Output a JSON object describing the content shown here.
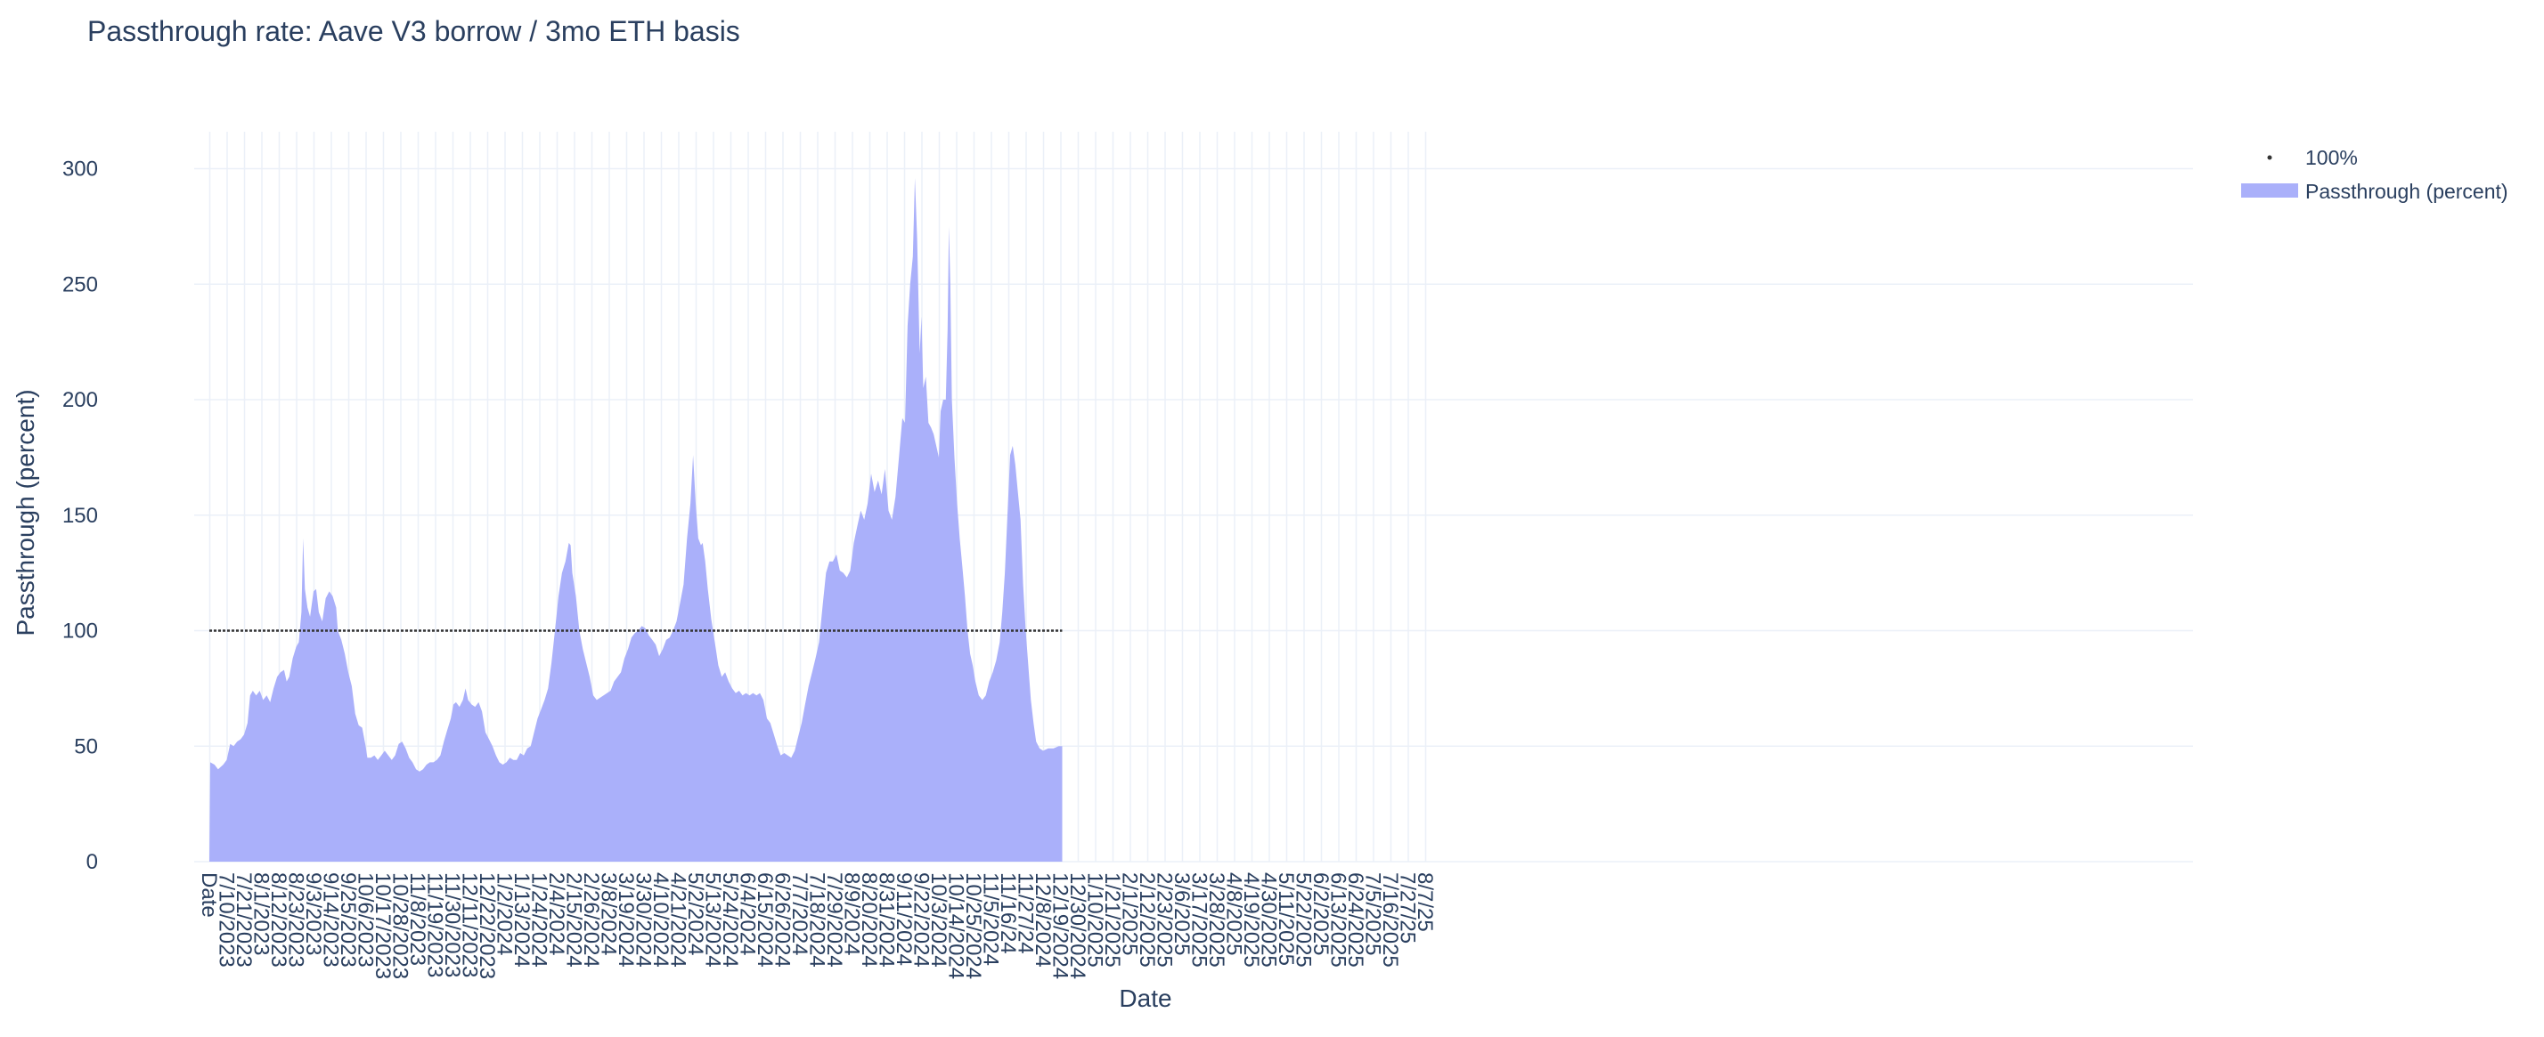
{
  "chart_data": {
    "type": "area",
    "title": "Passthrough rate: Aave V3 borrow / 3mo ETH basis",
    "xlabel": "Date",
    "ylabel": "Passthrough (percent)",
    "ylim": [
      0,
      316
    ],
    "yticks": [
      0,
      50,
      100,
      150,
      200,
      250,
      300
    ],
    "grid": true,
    "legend_position": "top-right",
    "colors": {
      "area": "#aab0fa",
      "grid": "#ebf0f8",
      "ref_line": "#333333",
      "text": "#2a3f5f"
    },
    "x_categories": [
      "Date",
      "7/10/2023",
      "7/21/2023",
      "8/1/2023",
      "8/12/2023",
      "8/23/2023",
      "9/3/2023",
      "9/14/2023",
      "9/25/2023",
      "10/6/2023",
      "10/17/2023",
      "10/28/2023",
      "11/8/2023",
      "11/19/2023",
      "11/30/2023",
      "12/11/2023",
      "12/22/2023",
      "1/2/2024",
      "1/13/2024",
      "1/24/2024",
      "2/4/2024",
      "2/15/2024",
      "2/26/2024",
      "3/8/2024",
      "3/19/2024",
      "3/30/2024",
      "4/10/2024",
      "4/21/2024",
      "5/2/2024",
      "5/13/2024",
      "5/24/2024",
      "6/4/2024",
      "6/15/2024",
      "6/26/2024",
      "7/7/2024",
      "7/18/2024",
      "7/29/2024",
      "8/9/2024",
      "8/20/2024",
      "8/31/2024",
      "9/11/2024",
      "9/22/2024",
      "10/3/2024",
      "10/14/2024",
      "10/25/2024",
      "11/5/2024",
      "11/16/24",
      "11/27/24",
      "12/8/2024",
      "12/19/2024",
      "12/30/2024",
      "1/10/2025",
      "1/21/2025",
      "2/1/2025",
      "2/12/2025",
      "2/23/2025",
      "3/6/2025",
      "3/17/2025",
      "3/28/2025",
      "4/8/2025",
      "4/19/2025",
      "4/30/2025",
      "5/11/2025",
      "5/22/2025",
      "6/2/2025",
      "6/13/2025",
      "6/24/2025",
      "7/5/2025",
      "7/16/2025",
      "7/27/25",
      "8/7/25"
    ],
    "series": [
      {
        "name": "Passthrough (percent)",
        "type": "area",
        "points": [
          [
            0,
            0
          ],
          [
            0.05,
            43
          ],
          [
            0.3,
            42
          ],
          [
            0.5,
            40
          ],
          [
            0.8,
            42
          ],
          [
            1.0,
            44
          ],
          [
            1.2,
            51
          ],
          [
            1.4,
            50
          ],
          [
            1.6,
            52
          ],
          [
            1.8,
            53
          ],
          [
            2.0,
            55
          ],
          [
            2.2,
            60
          ],
          [
            2.35,
            72
          ],
          [
            2.5,
            74
          ],
          [
            2.7,
            72
          ],
          [
            2.9,
            74
          ],
          [
            3.1,
            70
          ],
          [
            3.3,
            72
          ],
          [
            3.5,
            69
          ],
          [
            3.7,
            75
          ],
          [
            3.9,
            80
          ],
          [
            4.1,
            82
          ],
          [
            4.3,
            83
          ],
          [
            4.45,
            78
          ],
          [
            4.6,
            80
          ],
          [
            4.8,
            88
          ],
          [
            5.0,
            93
          ],
          [
            5.15,
            95
          ],
          [
            5.3,
            108
          ],
          [
            5.4,
            140
          ],
          [
            5.5,
            118
          ],
          [
            5.65,
            110
          ],
          [
            5.8,
            106
          ],
          [
            6.0,
            117
          ],
          [
            6.15,
            118
          ],
          [
            6.3,
            108
          ],
          [
            6.5,
            104
          ],
          [
            6.7,
            114
          ],
          [
            6.9,
            117
          ],
          [
            7.1,
            115
          ],
          [
            7.3,
            110
          ],
          [
            7.4,
            100
          ],
          [
            7.6,
            96
          ],
          [
            7.8,
            90
          ],
          [
            8.0,
            82
          ],
          [
            8.2,
            76
          ],
          [
            8.4,
            64
          ],
          [
            8.6,
            59
          ],
          [
            8.8,
            58
          ],
          [
            9.0,
            50
          ],
          [
            9.1,
            45
          ],
          [
            9.3,
            45
          ],
          [
            9.5,
            46
          ],
          [
            9.7,
            44
          ],
          [
            9.9,
            46
          ],
          [
            10.1,
            48
          ],
          [
            10.3,
            46
          ],
          [
            10.5,
            44
          ],
          [
            10.7,
            46
          ],
          [
            10.9,
            51
          ],
          [
            11.1,
            52
          ],
          [
            11.3,
            49
          ],
          [
            11.5,
            45
          ],
          [
            11.7,
            43
          ],
          [
            11.9,
            40
          ],
          [
            12.1,
            39
          ],
          [
            12.3,
            40
          ],
          [
            12.5,
            42
          ],
          [
            12.7,
            43
          ],
          [
            12.9,
            43
          ],
          [
            13.1,
            44
          ],
          [
            13.3,
            46
          ],
          [
            13.5,
            52
          ],
          [
            13.7,
            57
          ],
          [
            13.9,
            62
          ],
          [
            14.05,
            68
          ],
          [
            14.2,
            69
          ],
          [
            14.4,
            67
          ],
          [
            14.6,
            70
          ],
          [
            14.75,
            75
          ],
          [
            14.9,
            70
          ],
          [
            15.1,
            68
          ],
          [
            15.3,
            67
          ],
          [
            15.5,
            69
          ],
          [
            15.7,
            65
          ],
          [
            15.9,
            56
          ],
          [
            16.1,
            53
          ],
          [
            16.3,
            50
          ],
          [
            16.5,
            46
          ],
          [
            16.7,
            43
          ],
          [
            16.9,
            42
          ],
          [
            17.1,
            43
          ],
          [
            17.3,
            45
          ],
          [
            17.5,
            44
          ],
          [
            17.7,
            44
          ],
          [
            17.9,
            47
          ],
          [
            18.1,
            46
          ],
          [
            18.3,
            49
          ],
          [
            18.5,
            50
          ],
          [
            18.7,
            56
          ],
          [
            18.9,
            62
          ],
          [
            19.1,
            66
          ],
          [
            19.3,
            70
          ],
          [
            19.5,
            75
          ],
          [
            19.7,
            86
          ],
          [
            19.9,
            100
          ],
          [
            20.1,
            115
          ],
          [
            20.3,
            125
          ],
          [
            20.5,
            130
          ],
          [
            20.7,
            138
          ],
          [
            20.8,
            137
          ],
          [
            20.9,
            125
          ],
          [
            21.1,
            115
          ],
          [
            21.3,
            100
          ],
          [
            21.5,
            92
          ],
          [
            21.7,
            86
          ],
          [
            21.9,
            80
          ],
          [
            22.1,
            72
          ],
          [
            22.3,
            70
          ],
          [
            22.5,
            71
          ],
          [
            22.7,
            72
          ],
          [
            22.9,
            73
          ],
          [
            23.1,
            74
          ],
          [
            23.3,
            78
          ],
          [
            23.5,
            80
          ],
          [
            23.7,
            82
          ],
          [
            23.9,
            88
          ],
          [
            24.1,
            92
          ],
          [
            24.3,
            97
          ],
          [
            24.5,
            99
          ],
          [
            24.7,
            100
          ],
          [
            24.9,
            102
          ],
          [
            25.1,
            101
          ],
          [
            25.3,
            98
          ],
          [
            25.5,
            96
          ],
          [
            25.7,
            94
          ],
          [
            25.9,
            89
          ],
          [
            26.1,
            92
          ],
          [
            26.3,
            96
          ],
          [
            26.5,
            97
          ],
          [
            26.7,
            100
          ],
          [
            26.9,
            104
          ],
          [
            27.1,
            112
          ],
          [
            27.3,
            120
          ],
          [
            27.5,
            140
          ],
          [
            27.7,
            155
          ],
          [
            27.85,
            176
          ],
          [
            28.0,
            155
          ],
          [
            28.15,
            140
          ],
          [
            28.3,
            137
          ],
          [
            28.4,
            138
          ],
          [
            28.55,
            130
          ],
          [
            28.7,
            118
          ],
          [
            28.9,
            105
          ],
          [
            29.1,
            95
          ],
          [
            29.3,
            85
          ],
          [
            29.5,
            80
          ],
          [
            29.7,
            82
          ],
          [
            29.9,
            78
          ],
          [
            30.1,
            75
          ],
          [
            30.3,
            73
          ],
          [
            30.5,
            74
          ],
          [
            30.7,
            72
          ],
          [
            30.9,
            73
          ],
          [
            31.1,
            72
          ],
          [
            31.3,
            73
          ],
          [
            31.5,
            72
          ],
          [
            31.7,
            73
          ],
          [
            31.9,
            70
          ],
          [
            32.1,
            62
          ],
          [
            32.3,
            60
          ],
          [
            32.5,
            55
          ],
          [
            32.7,
            50
          ],
          [
            32.9,
            46
          ],
          [
            33.1,
            47
          ],
          [
            33.3,
            46
          ],
          [
            33.5,
            45
          ],
          [
            33.7,
            48
          ],
          [
            33.9,
            54
          ],
          [
            34.1,
            60
          ],
          [
            34.3,
            68
          ],
          [
            34.5,
            76
          ],
          [
            34.7,
            82
          ],
          [
            34.9,
            88
          ],
          [
            35.1,
            95
          ],
          [
            35.3,
            110
          ],
          [
            35.5,
            125
          ],
          [
            35.7,
            130
          ],
          [
            35.9,
            130
          ],
          [
            36.1,
            133
          ],
          [
            36.3,
            126
          ],
          [
            36.5,
            125
          ],
          [
            36.7,
            123
          ],
          [
            36.9,
            126
          ],
          [
            37.1,
            138
          ],
          [
            37.3,
            145
          ],
          [
            37.5,
            152
          ],
          [
            37.7,
            148
          ],
          [
            37.9,
            155
          ],
          [
            38.1,
            168
          ],
          [
            38.3,
            160
          ],
          [
            38.5,
            165
          ],
          [
            38.7,
            159
          ],
          [
            38.9,
            170
          ],
          [
            39.1,
            152
          ],
          [
            39.3,
            148
          ],
          [
            39.5,
            158
          ],
          [
            39.7,
            175
          ],
          [
            39.9,
            192
          ],
          [
            40.05,
            190
          ],
          [
            40.2,
            232
          ],
          [
            40.35,
            250
          ],
          [
            40.5,
            262
          ],
          [
            40.62,
            296
          ],
          [
            40.75,
            270
          ],
          [
            40.9,
            220
          ],
          [
            41.0,
            236
          ],
          [
            41.1,
            205
          ],
          [
            41.25,
            210
          ],
          [
            41.4,
            190
          ],
          [
            41.55,
            188
          ],
          [
            41.7,
            185
          ],
          [
            41.85,
            180
          ],
          [
            42.0,
            175
          ],
          [
            42.1,
            195
          ],
          [
            42.25,
            200
          ],
          [
            42.4,
            200
          ],
          [
            42.5,
            230
          ],
          [
            42.58,
            275
          ],
          [
            42.66,
            250
          ],
          [
            42.75,
            200
          ],
          [
            42.9,
            175
          ],
          [
            43.05,
            155
          ],
          [
            43.2,
            140
          ],
          [
            43.35,
            128
          ],
          [
            43.5,
            115
          ],
          [
            43.65,
            100
          ],
          [
            43.8,
            90
          ],
          [
            43.95,
            85
          ],
          [
            44.1,
            78
          ],
          [
            44.3,
            72
          ],
          [
            44.5,
            70
          ],
          [
            44.7,
            72
          ],
          [
            44.9,
            78
          ],
          [
            45.1,
            82
          ],
          [
            45.3,
            87
          ],
          [
            45.5,
            95
          ],
          [
            45.65,
            108
          ],
          [
            45.8,
            125
          ],
          [
            45.95,
            150
          ],
          [
            46.1,
            176
          ],
          [
            46.25,
            180
          ],
          [
            46.4,
            172
          ],
          [
            46.55,
            160
          ],
          [
            46.7,
            148
          ],
          [
            46.85,
            120
          ],
          [
            47.0,
            100
          ],
          [
            47.15,
            85
          ],
          [
            47.3,
            70
          ],
          [
            47.45,
            60
          ],
          [
            47.6,
            52
          ],
          [
            47.8,
            49
          ],
          [
            48.0,
            48
          ],
          [
            48.3,
            49
          ],
          [
            48.6,
            49
          ],
          [
            48.9,
            50
          ],
          [
            49.1,
            50
          ],
          [
            49.1,
            0
          ]
        ]
      },
      {
        "name": "100%",
        "type": "reference-line",
        "y": 100,
        "x_range": [
          0,
          49.1
        ]
      }
    ]
  }
}
